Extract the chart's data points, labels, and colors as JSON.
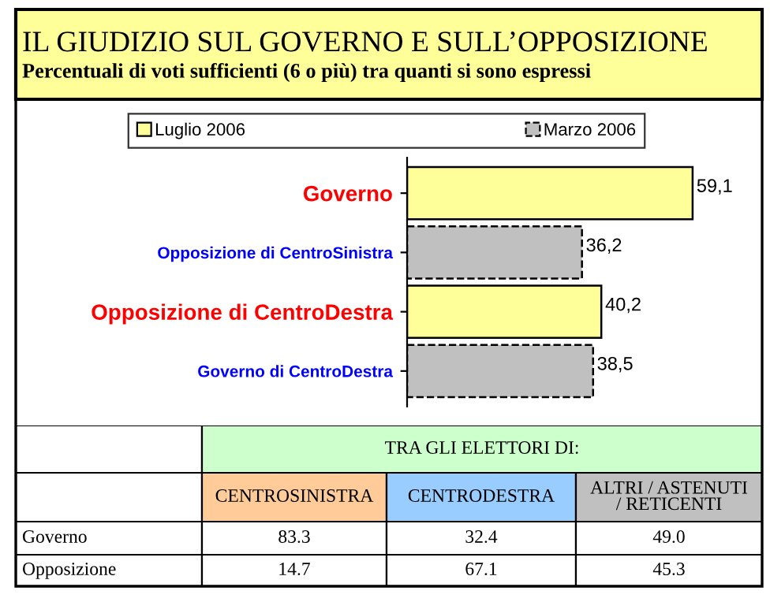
{
  "chart_data": [
    {
      "type": "bar",
      "orientation": "horizontal",
      "title": "IL GIUDIZIO SUL GOVERNO E SULL’OPPOSIZIONE",
      "subtitle": "Percentuali di voti sufficienti (6 o più) tra quanti si sono espressi",
      "categories": [
        "Governo",
        "Opposizione di CentroSinistra",
        "Opposizione di CentroDestra",
        "Governo di CentroDestra"
      ],
      "tick_labels": "y",
      "legend": "top",
      "grid": false,
      "series": [
        {
          "name": "Luglio 2006",
          "color": "#ffff99",
          "line_style": "solid",
          "values": [
            59.1,
            null,
            40.2,
            null
          ],
          "value_labels": [
            "59,1",
            null,
            "40,2",
            null
          ]
        },
        {
          "name": "Marzo 2006",
          "color": "#c0c0c0",
          "line_style": "dashed",
          "values": [
            null,
            36.2,
            null,
            38.5
          ],
          "value_labels": [
            null,
            "36,2",
            null,
            "38,5"
          ]
        }
      ]
    },
    {
      "type": "other",
      "title": "TRA GLI ELETTORI DI:",
      "categories": [
        "CENTROSINISTRA",
        "CENTRODESTRA",
        "ALTRI / ASTENUTI\n/ RETICENTI"
      ],
      "colors": [
        "#ffcc99",
        "#99ccff",
        "#c0c0c0"
      ],
      "y_categories": [
        "Governo",
        "Opposizione"
      ],
      "cell_labels": [
        [
          "83.3",
          "32.4",
          "49.0"
        ],
        [
          "14.7",
          "67.1",
          "45.3"
        ]
      ]
    }
  ]
}
